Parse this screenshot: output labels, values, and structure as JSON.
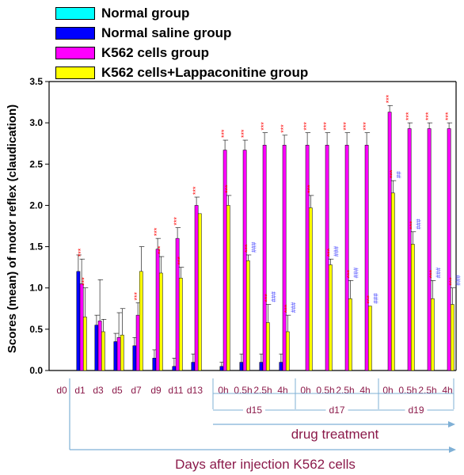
{
  "chart_data": {
    "type": "bar",
    "ylabel": "Scores (mean) of motor reflex (claudication)",
    "xlabel": "Days after injection K562 cells",
    "bracket_label": "drug treatment",
    "ylim": [
      0,
      3.5
    ],
    "yticks": [
      "0.0",
      "0.5",
      "1.0",
      "1.5",
      "2.0",
      "2.5",
      "3.0",
      "3.5"
    ],
    "categories": [
      "d0",
      "d1",
      "d3",
      "d5",
      "d7",
      "d9",
      "d11",
      "d13",
      "0h",
      "0.5h",
      "2.5h",
      "4h",
      "0h",
      "0.5h",
      "2.5h",
      "4h",
      "0h",
      "0.5h",
      "2.5h",
      "4h"
    ],
    "groups": [
      {
        "label": "d15",
        "from": 8,
        "to": 11
      },
      {
        "label": "d17",
        "from": 12,
        "to": 15
      },
      {
        "label": "d19",
        "from": 16,
        "to": 19
      }
    ],
    "series": [
      {
        "name": "Normal group",
        "color": "#00ffff",
        "values": [
          0,
          0,
          0,
          0,
          0,
          0,
          0,
          0,
          0,
          0,
          0,
          0,
          0,
          0,
          0,
          0,
          0,
          0,
          0,
          0
        ],
        "errors": [
          0,
          0,
          0,
          0,
          0,
          0,
          0,
          0,
          0,
          0,
          0,
          0,
          0,
          0,
          0,
          0,
          0,
          0,
          0,
          0
        ]
      },
      {
        "name": "Normal saline group",
        "color": "#0000ff",
        "values": [
          0,
          1.2,
          0.55,
          0.35,
          0.3,
          0.15,
          0.05,
          0.1,
          0.05,
          0.1,
          0.1,
          0.1,
          0,
          0,
          0,
          0,
          0,
          0,
          0,
          0
        ],
        "errors": [
          0,
          0.2,
          0.12,
          0.1,
          0.1,
          0.1,
          0.1,
          0.1,
          0.05,
          0.1,
          0.1,
          0.1,
          0,
          0,
          0,
          0,
          0,
          0,
          0,
          0
        ]
      },
      {
        "name": "K562 cells group",
        "color": "#ff00ff",
        "values": [
          0,
          1.05,
          0.6,
          0.4,
          0.67,
          1.47,
          1.6,
          2.0,
          2.67,
          2.67,
          2.73,
          2.73,
          2.73,
          2.73,
          2.73,
          2.73,
          3.13,
          2.93,
          2.93,
          2.93
        ],
        "errors": [
          0,
          0.3,
          0.5,
          0.3,
          0.15,
          0.13,
          0.13,
          0.1,
          0.12,
          0.12,
          0.15,
          0.12,
          0.15,
          0.15,
          0.15,
          0.15,
          0.08,
          0.07,
          0.07,
          0.07
        ],
        "annotations": [
          "",
          "***",
          "",
          "",
          "***",
          "***",
          "***",
          "***",
          "***",
          "***",
          "***",
          "***",
          "***",
          "***",
          "***",
          "***",
          "***",
          "***",
          "***",
          "***"
        ]
      },
      {
        "name": "K562 cells+Lappaconitine group",
        "color": "#ffff00",
        "values": [
          0,
          0.65,
          0.47,
          0.43,
          1.2,
          1.18,
          1.12,
          1.9,
          2.0,
          1.33,
          0.58,
          0.47,
          1.97,
          1.28,
          0.87,
          0.78,
          2.15,
          1.53,
          0.87,
          0.8
        ],
        "errors": [
          0,
          0.35,
          0.15,
          0.32,
          0.3,
          0.2,
          0.13,
          0.0,
          0.12,
          0.07,
          0.22,
          0.2,
          0.15,
          0.07,
          0.22,
          0.0,
          0.15,
          0.15,
          0.22,
          0.2
        ],
        "annotations": [
          "",
          "***",
          "",
          "",
          "",
          "***",
          "***",
          "",
          "***",
          "***",
          "***",
          "***",
          "***",
          "***",
          "***",
          "***",
          "***",
          "***",
          "***",
          "***"
        ],
        "hash_annotations": [
          "",
          "",
          "",
          "",
          "",
          "",
          "",
          "",
          "",
          "###",
          "###",
          "###",
          "",
          "###",
          "###",
          "###",
          "##",
          "###",
          "###",
          "###"
        ]
      }
    ]
  }
}
